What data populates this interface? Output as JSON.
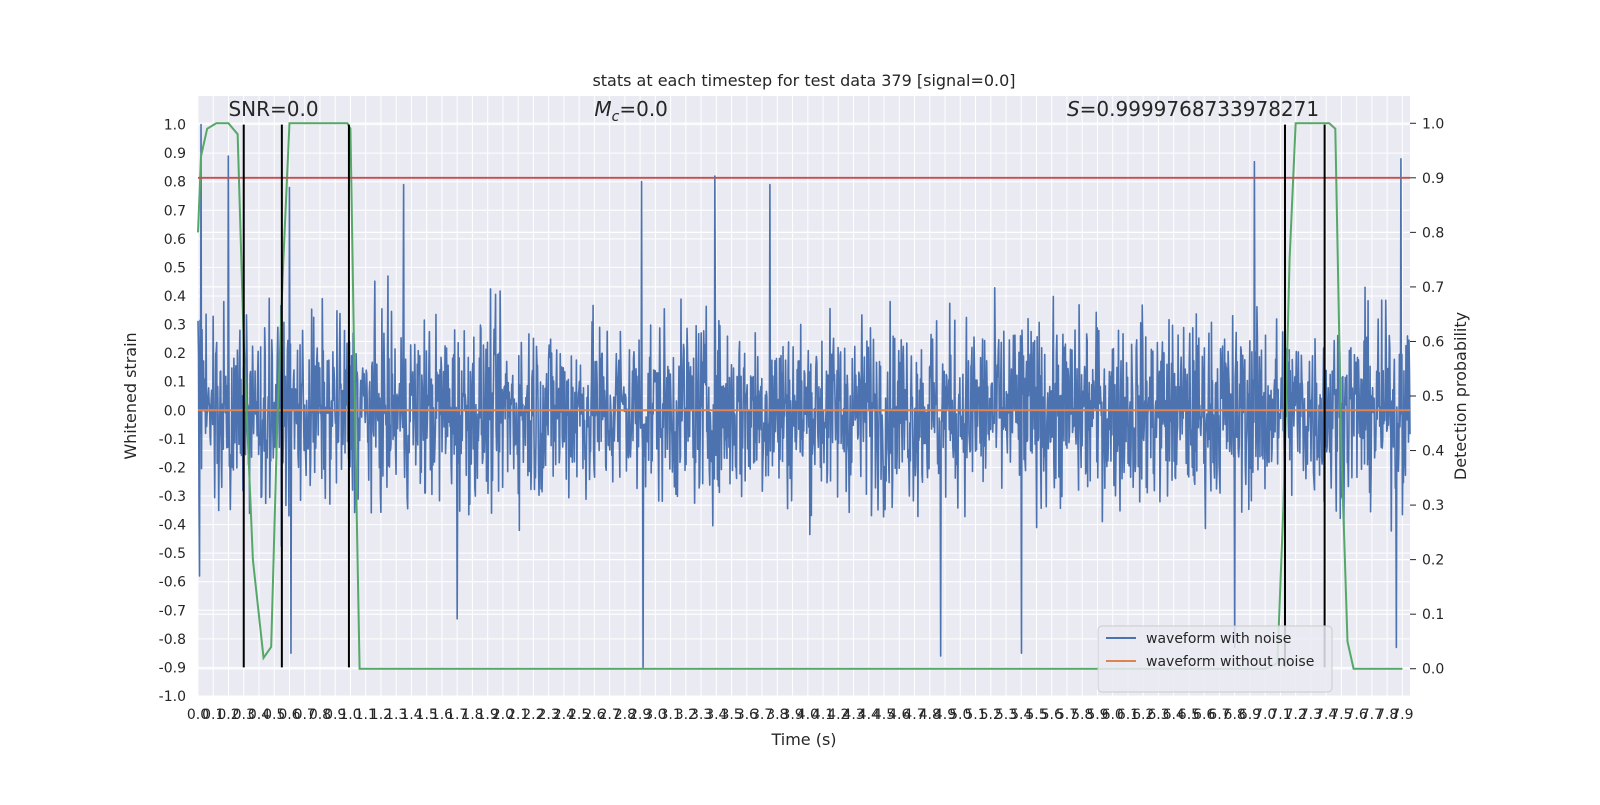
{
  "chart_data": {
    "type": "line",
    "title": "stats at each timestep for test data 379 [signal=0.0]",
    "xlabel": "Time (s)",
    "ylabel": "Whitened strain",
    "y2label": "Detection probability",
    "xlim": [
      0.0,
      7.95
    ],
    "ylim": [
      -1.0,
      1.1
    ],
    "y2lim": [
      -0.05,
      1.05
    ],
    "x_ticks": [
      0.0,
      0.1,
      0.2,
      0.3,
      0.4,
      0.5,
      0.6,
      0.7,
      0.8,
      0.9,
      1.0,
      1.1,
      1.2,
      1.3,
      1.4,
      1.5,
      1.6,
      1.7,
      1.8,
      1.9,
      2.0,
      2.1,
      2.2,
      2.3,
      2.4,
      2.5,
      2.6,
      2.7,
      2.8,
      2.9,
      3.0,
      3.1,
      3.2,
      3.3,
      3.4,
      3.5,
      3.6,
      3.7,
      3.8,
      3.9,
      4.0,
      4.1,
      4.2,
      4.3,
      4.4,
      4.5,
      4.6,
      4.7,
      4.8,
      4.9,
      5.0,
      5.1,
      5.2,
      5.3,
      5.4,
      5.5,
      5.6,
      5.7,
      5.8,
      5.9,
      6.0,
      6.1,
      6.2,
      6.3,
      6.4,
      6.5,
      6.6,
      6.7,
      6.8,
      6.9,
      7.0,
      7.1,
      7.2,
      7.3,
      7.4,
      7.5,
      7.6,
      7.7,
      7.8,
      7.9
    ],
    "y_ticks": [
      -1.0,
      -0.9,
      -0.8,
      -0.7,
      -0.6,
      -0.5,
      -0.4,
      -0.3,
      -0.2,
      -0.1,
      0.0,
      0.1,
      0.2,
      0.3,
      0.4,
      0.5,
      0.6,
      0.7,
      0.8,
      0.9,
      1.0
    ],
    "y2_ticks": [
      0.0,
      0.1,
      0.2,
      0.3,
      0.4,
      0.5,
      0.6,
      0.7,
      0.8,
      0.9,
      1.0
    ],
    "grid": true,
    "legend_placement": "lower-right",
    "annotations": [
      {
        "text": "SNR=0.0",
        "x": 0.2,
        "y": 1.03
      },
      {
        "text": "M_c=0.0",
        "x": 2.6,
        "y": 1.03
      },
      {
        "text": "S=0.9999768733978271",
        "x": 5.7,
        "y": 1.03
      }
    ],
    "series": [
      {
        "name": "waveform with noise",
        "color": "#4c72b0",
        "kind": "noise",
        "envelope": {
          "upper_typical": 0.45,
          "lower_typical": -0.45,
          "max": 1.0,
          "min": -0.9
        },
        "peaks": [
          {
            "x": 0.02,
            "y": 1.0
          },
          {
            "x": 0.2,
            "y": 0.89
          },
          {
            "x": 3.39,
            "y": 0.82
          },
          {
            "x": 2.91,
            "y": 0.8
          },
          {
            "x": 1.35,
            "y": 0.79
          },
          {
            "x": 3.75,
            "y": 0.79
          },
          {
            "x": 6.93,
            "y": 0.87
          },
          {
            "x": 7.89,
            "y": 0.88
          },
          {
            "x": 0.6,
            "y": 0.78
          }
        ],
        "troughs": [
          {
            "x": 2.92,
            "y": -0.9
          },
          {
            "x": 4.87,
            "y": -0.86
          },
          {
            "x": 0.01,
            "y": -0.58
          },
          {
            "x": 0.61,
            "y": -0.85
          },
          {
            "x": 6.8,
            "y": -0.83
          },
          {
            "x": 7.86,
            "y": -0.83
          },
          {
            "x": 1.7,
            "y": -0.73
          },
          {
            "x": 5.4,
            "y": -0.85
          }
        ]
      },
      {
        "name": "waveform without noise",
        "color": "#dd8452",
        "x": [
          0.0,
          7.95
        ],
        "y": [
          0.0,
          0.0
        ]
      },
      {
        "color": "#55a868",
        "axis": "right",
        "x": [
          0.0,
          0.02,
          0.06,
          0.12,
          0.2,
          0.26,
          0.3,
          0.36,
          0.43,
          0.48,
          0.52,
          0.56,
          0.6,
          0.64,
          0.7,
          0.8,
          0.9,
          0.98,
          1.0,
          1.04,
          1.06,
          1.08,
          1.2,
          2.0,
          3.0,
          4.0,
          5.0,
          6.0,
          7.0,
          7.08,
          7.12,
          7.16,
          7.2,
          7.3,
          7.42,
          7.46,
          7.5,
          7.54,
          7.58,
          7.7,
          7.9
        ],
        "y": [
          0.8,
          0.94,
          0.99,
          1.0,
          1.0,
          0.98,
          0.6,
          0.2,
          0.02,
          0.04,
          0.45,
          0.75,
          1.0,
          1.0,
          1.0,
          1.0,
          1.0,
          1.0,
          0.99,
          0.3,
          0.0,
          0.0,
          0.0,
          0.0,
          0.0,
          0.0,
          0.0,
          0.0,
          0.0,
          0.01,
          0.3,
          0.75,
          1.0,
          1.0,
          1.0,
          0.99,
          0.4,
          0.05,
          0.0,
          0.0,
          0.0
        ]
      }
    ],
    "threshold_line": {
      "color": "#c44e52",
      "axis": "right",
      "y": 0.9
    },
    "vertical_markers": {
      "color": "#000000",
      "x": [
        0.3,
        0.55,
        0.99,
        7.13,
        7.39
      ],
      "y_from": -0.9,
      "y_to": 1.0
    }
  }
}
